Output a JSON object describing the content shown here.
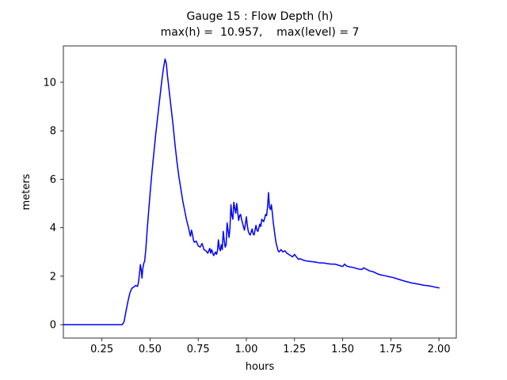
{
  "chart_data": {
    "type": "line",
    "title": "Gauge 15 : Flow Depth (h)",
    "subtitle": "max(h) =  10.957,    max(level) = 7",
    "xlabel": "hours",
    "ylabel": "meters",
    "xlim": [
      0.05,
      2.09
    ],
    "ylim": [
      -0.55,
      11.5
    ],
    "xticks": [
      0.25,
      0.5,
      0.75,
      1.0,
      1.25,
      1.5,
      1.75,
      2.0
    ],
    "xtick_labels": [
      "0.25",
      "0.50",
      "0.75",
      "1.00",
      "1.25",
      "1.50",
      "1.75",
      "2.00"
    ],
    "yticks": [
      0,
      2,
      4,
      6,
      8,
      10
    ],
    "ytick_labels": [
      "0",
      "2",
      "4",
      "6",
      "8",
      "10"
    ],
    "grid": false,
    "legend": "none",
    "line_color": "#0000ff",
    "series": [
      {
        "name": "flow-depth",
        "x": [
          0.05,
          0.1,
          0.2,
          0.3,
          0.355,
          0.365,
          0.375,
          0.385,
          0.395,
          0.405,
          0.415,
          0.425,
          0.435,
          0.44,
          0.445,
          0.45,
          0.455,
          0.458,
          0.462,
          0.468,
          0.472,
          0.478,
          0.485,
          0.49,
          0.5,
          0.51,
          0.52,
          0.53,
          0.54,
          0.55,
          0.56,
          0.57,
          0.578,
          0.585,
          0.59,
          0.6,
          0.61,
          0.62,
          0.63,
          0.64,
          0.65,
          0.66,
          0.67,
          0.68,
          0.69,
          0.7,
          0.705,
          0.71,
          0.715,
          0.72,
          0.725,
          0.73,
          0.74,
          0.75,
          0.76,
          0.77,
          0.78,
          0.79,
          0.8,
          0.81,
          0.815,
          0.82,
          0.83,
          0.84,
          0.845,
          0.85,
          0.855,
          0.86,
          0.865,
          0.87,
          0.875,
          0.88,
          0.885,
          0.89,
          0.895,
          0.9,
          0.905,
          0.91,
          0.915,
          0.92,
          0.925,
          0.93,
          0.935,
          0.94,
          0.945,
          0.95,
          0.955,
          0.96,
          0.965,
          0.97,
          0.975,
          0.98,
          0.985,
          0.99,
          0.995,
          1.0,
          1.005,
          1.01,
          1.015,
          1.02,
          1.03,
          1.035,
          1.04,
          1.05,
          1.055,
          1.06,
          1.07,
          1.075,
          1.08,
          1.09,
          1.1,
          1.105,
          1.11,
          1.115,
          1.12,
          1.125,
          1.13,
          1.135,
          1.14,
          1.145,
          1.15,
          1.155,
          1.16,
          1.165,
          1.17,
          1.18,
          1.19,
          1.2,
          1.21,
          1.22,
          1.23,
          1.24,
          1.25,
          1.26,
          1.27,
          1.28,
          1.3,
          1.32,
          1.34,
          1.36,
          1.38,
          1.4,
          1.42,
          1.44,
          1.46,
          1.48,
          1.5,
          1.51,
          1.52,
          1.54,
          1.56,
          1.58,
          1.6,
          1.61,
          1.62,
          1.64,
          1.66,
          1.68,
          1.7,
          1.72,
          1.74,
          1.76,
          1.78,
          1.8,
          1.83,
          1.86,
          1.89,
          1.92,
          1.95,
          1.98,
          2.0
        ],
        "y": [
          0,
          0,
          0,
          0,
          0,
          0.12,
          0.55,
          0.95,
          1.3,
          1.5,
          1.55,
          1.62,
          1.58,
          1.75,
          2.1,
          2.48,
          2.2,
          1.92,
          2.3,
          2.55,
          2.62,
          3.1,
          3.9,
          4.4,
          5.4,
          6.3,
          7.1,
          7.9,
          8.6,
          9.3,
          10.0,
          10.6,
          10.957,
          10.75,
          10.3,
          9.6,
          8.9,
          8.2,
          7.4,
          6.7,
          6.1,
          5.6,
          5.1,
          4.7,
          4.3,
          4.0,
          3.8,
          3.65,
          3.9,
          3.75,
          3.5,
          3.4,
          3.45,
          3.25,
          3.2,
          3.35,
          3.1,
          3.05,
          2.95,
          3.15,
          2.95,
          3.1,
          2.85,
          3.0,
          2.9,
          3.05,
          3.5,
          3.15,
          3.05,
          3.3,
          3.1,
          3.85,
          3.5,
          3.2,
          3.3,
          4.2,
          3.9,
          3.6,
          4.0,
          4.95,
          4.5,
          4.35,
          5.05,
          4.8,
          4.6,
          5.0,
          4.65,
          4.3,
          4.5,
          4.55,
          4.35,
          4.2,
          4.05,
          3.9,
          4.15,
          4.45,
          4.1,
          3.85,
          3.75,
          3.7,
          3.95,
          3.75,
          3.7,
          4.1,
          3.9,
          3.85,
          4.15,
          4.05,
          4.35,
          4.25,
          4.55,
          4.5,
          4.85,
          5.45,
          4.85,
          4.75,
          4.95,
          4.6,
          4.2,
          3.9,
          3.6,
          3.35,
          3.2,
          3.05,
          3.0,
          3.1,
          3.0,
          3.05,
          2.95,
          2.9,
          2.85,
          2.8,
          2.9,
          2.8,
          2.7,
          2.72,
          2.65,
          2.62,
          2.6,
          2.58,
          2.55,
          2.55,
          2.52,
          2.5,
          2.5,
          2.45,
          2.4,
          2.5,
          2.42,
          2.38,
          2.35,
          2.3,
          2.28,
          2.35,
          2.3,
          2.22,
          2.18,
          2.1,
          2.05,
          2.02,
          1.98,
          1.95,
          1.9,
          1.85,
          1.78,
          1.72,
          1.68,
          1.63,
          1.6,
          1.55,
          1.52
        ]
      }
    ],
    "max_h": "10.957",
    "max_level": "7"
  }
}
